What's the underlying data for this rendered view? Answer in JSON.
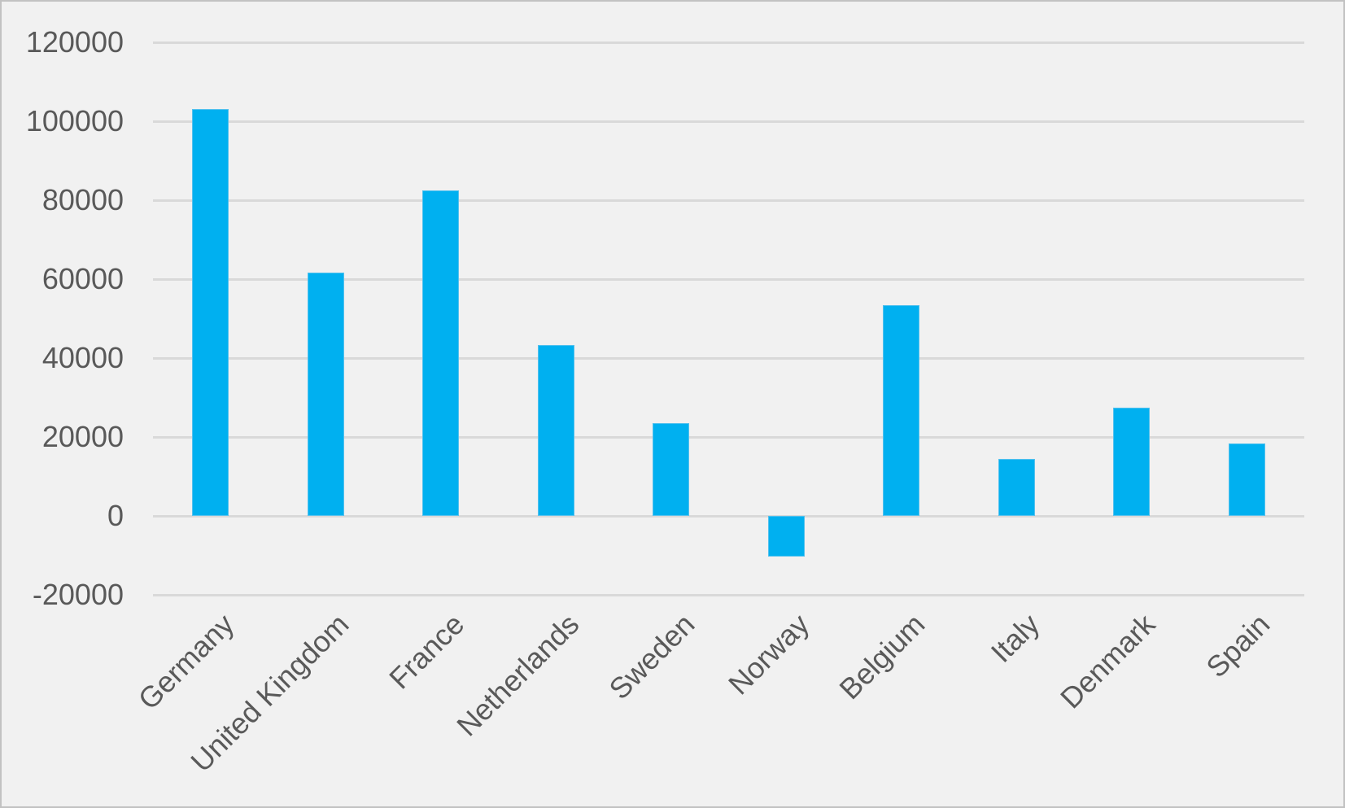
{
  "chart_data": {
    "type": "bar",
    "title": "",
    "xlabel": "",
    "ylabel": "",
    "categories": [
      "Germany",
      "United Kingdom",
      "France",
      "Netherlands",
      "Sweden",
      "Norway",
      "Belgium",
      "Italy",
      "Denmark",
      "Spain"
    ],
    "series": [
      {
        "name": "",
        "values": [
          103000,
          61600,
          82400,
          43200,
          23500,
          -10300,
          53500,
          14500,
          27400,
          18400
        ]
      }
    ],
    "ylim": [
      -20000,
      120000
    ],
    "ytick_step": 20000,
    "yticks": [
      120000,
      100000,
      80000,
      60000,
      40000,
      20000,
      0,
      -20000
    ],
    "grid": true,
    "legend": "none",
    "x_label_rotation_deg": -45,
    "colors": {
      "bar_fill": "#00B0F0",
      "bar_edge": "#53C1EE",
      "background": "#F1F1F1",
      "gridline": "#D9D9D9",
      "axis_text": "#595959",
      "outer_border": "#C2C2C2"
    }
  }
}
